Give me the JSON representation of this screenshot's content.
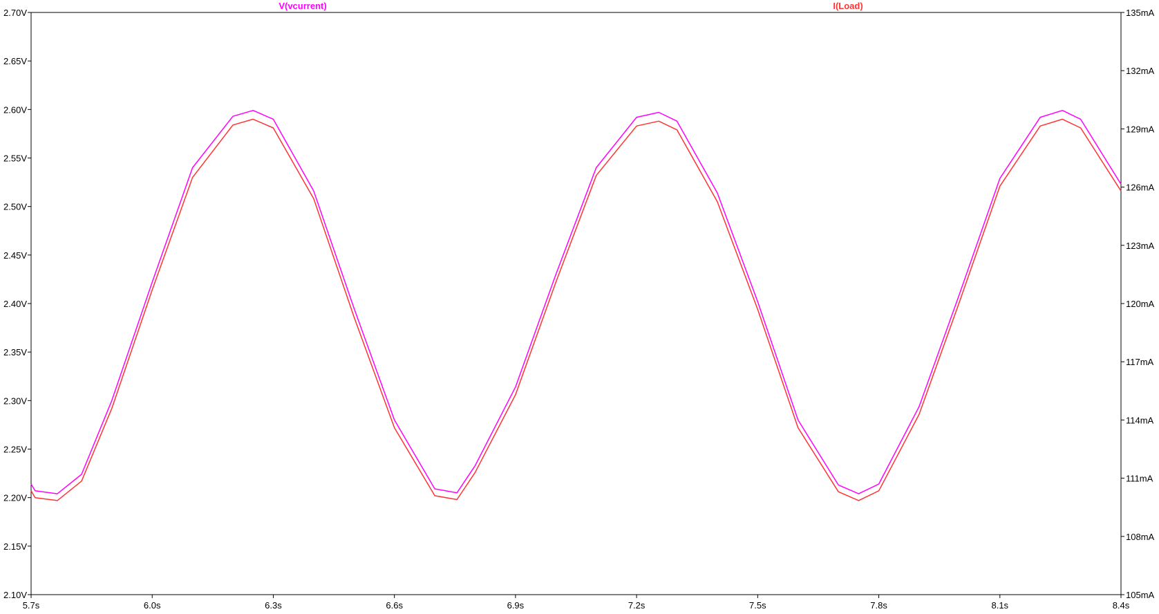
{
  "chart_data": {
    "type": "line",
    "grid": false,
    "legend_placement": "top",
    "x": {
      "unit": "s",
      "lim": [
        5.7,
        8.4
      ],
      "ticks": [
        5.7,
        6.0,
        6.3,
        6.6,
        6.9,
        7.2,
        7.5,
        7.8,
        8.1,
        8.4
      ],
      "tick_labels": [
        "5.7s",
        "6.0s",
        "6.3s",
        "6.6s",
        "6.9s",
        "7.2s",
        "7.5s",
        "7.8s",
        "8.1s",
        "8.4s"
      ]
    },
    "y_left": {
      "unit": "V",
      "lim": [
        2.1,
        2.7
      ],
      "ticks": [
        2.1,
        2.15,
        2.2,
        2.25,
        2.3,
        2.35,
        2.4,
        2.45,
        2.5,
        2.55,
        2.6,
        2.65,
        2.7
      ],
      "tick_labels": [
        "2.10V",
        "2.15V",
        "2.20V",
        "2.25V",
        "2.30V",
        "2.35V",
        "2.40V",
        "2.45V",
        "2.50V",
        "2.55V",
        "2.60V",
        "2.65V",
        "2.70V"
      ]
    },
    "y_right": {
      "unit": "mA",
      "lim": [
        105,
        135
      ],
      "ticks": [
        105,
        108,
        111,
        114,
        117,
        120,
        123,
        126,
        129,
        132,
        135
      ],
      "tick_labels": [
        "105mA",
        "108mA",
        "111mA",
        "114mA",
        "117mA",
        "120mA",
        "123mA",
        "126mA",
        "129mA",
        "132mA",
        "135mA"
      ]
    },
    "series": [
      {
        "name": "V(vcurrent)",
        "axis": "left",
        "color": "#ff00ff",
        "x": [
          5.7,
          5.71,
          5.765,
          5.825,
          5.9,
          6.0,
          6.1,
          6.2,
          6.25,
          6.3,
          6.4,
          6.5,
          6.6,
          6.7,
          6.755,
          6.8,
          6.9,
          7.0,
          7.1,
          7.2,
          7.255,
          7.3,
          7.4,
          7.5,
          7.6,
          7.7,
          7.75,
          7.8,
          7.9,
          8.0,
          8.1,
          8.2,
          8.255,
          8.3,
          8.4
        ],
        "y": [
          2.214,
          2.207,
          2.204,
          2.224,
          2.3,
          2.422,
          2.54,
          2.593,
          2.599,
          2.59,
          2.516,
          2.395,
          2.28,
          2.209,
          2.205,
          2.233,
          2.314,
          2.43,
          2.54,
          2.592,
          2.597,
          2.588,
          2.514,
          2.402,
          2.28,
          2.213,
          2.204,
          2.214,
          2.294,
          2.41,
          2.529,
          2.592,
          2.599,
          2.59,
          2.523
        ]
      },
      {
        "name": "I(Load)",
        "axis": "right",
        "color": "#ff3333",
        "x": [
          5.7,
          5.71,
          5.765,
          5.825,
          5.9,
          6.0,
          6.1,
          6.2,
          6.25,
          6.3,
          6.4,
          6.5,
          6.6,
          6.7,
          6.755,
          6.8,
          6.9,
          7.0,
          7.1,
          7.2,
          7.255,
          7.3,
          7.4,
          7.5,
          7.6,
          7.7,
          7.75,
          7.8,
          7.9,
          8.0,
          8.1,
          8.2,
          8.255,
          8.3,
          8.4
        ],
        "y": [
          110.35,
          110.0,
          109.85,
          110.85,
          114.6,
          120.7,
          126.5,
          129.2,
          129.5,
          129.05,
          125.4,
          119.3,
          113.6,
          110.1,
          109.9,
          111.3,
          115.3,
          121.1,
          126.6,
          129.15,
          129.4,
          128.95,
          125.25,
          119.7,
          113.6,
          110.3,
          109.85,
          110.35,
          114.3,
          120.1,
          126.05,
          129.15,
          129.5,
          129.05,
          125.8
        ]
      }
    ]
  }
}
